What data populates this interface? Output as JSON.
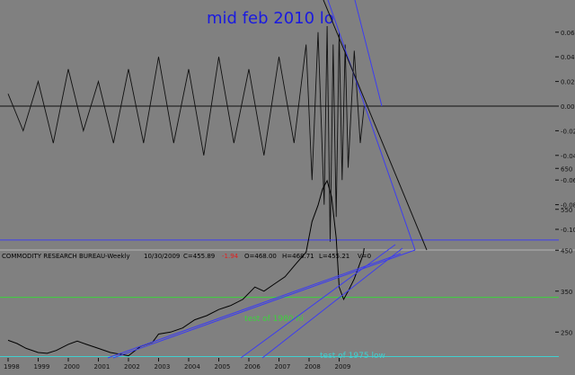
{
  "chart_data": [
    {
      "type": "line",
      "title": "mid feb 2010 lo",
      "ylabel": "",
      "xlabel": "",
      "ylim": [
        -0.12,
        0.07
      ],
      "y_ticks": [
        "0.06",
        "0.04",
        "0.02",
        "0.00",
        "-0.02",
        "-0.04",
        "-0.06",
        "-0.08",
        "-0.10"
      ],
      "zero_line": 0.0,
      "series": [
        {
          "x": [
            1998.0,
            1998.5,
            1999.0,
            1999.5,
            2000.0,
            2000.5,
            2001.0,
            2001.5,
            2002.0,
            2002.5,
            2003.0,
            2003.5,
            2004.0,
            2004.5,
            2005.0,
            2005.5,
            2006.0,
            2006.5,
            2007.0,
            2007.5,
            2007.9,
            2008.1,
            2008.3,
            2008.5,
            2008.6,
            2008.7,
            2008.8,
            2008.9,
            2009.0,
            2009.1,
            2009.2,
            2009.3,
            2009.5,
            2009.7,
            2009.83
          ],
          "y": [
            0.01,
            -0.02,
            0.02,
            -0.03,
            0.03,
            -0.02,
            0.02,
            -0.03,
            0.03,
            -0.03,
            0.04,
            -0.03,
            0.03,
            -0.04,
            0.04,
            -0.03,
            0.03,
            -0.04,
            0.04,
            -0.03,
            0.05,
            -0.06,
            0.06,
            -0.08,
            0.065,
            -0.11,
            0.05,
            -0.09,
            0.06,
            -0.06,
            0.05,
            -0.05,
            0.045,
            -0.03,
            0.0
          ]
        }
      ],
      "color": "#101010"
    },
    {
      "type": "line",
      "title": "COMMODITY RESEARCH BUREAU-Weekly",
      "header": {
        "date": "10/30/2009",
        "close": "C=455.89",
        "change": "-1.94",
        "open": "O=468.00",
        "high": "H=468.71",
        "low": "L=455.21",
        "volume": "V=0"
      },
      "xlabel": "",
      "ylabel": "",
      "x_ticks": [
        "1998",
        "1999",
        "2000",
        "2001",
        "2002",
        "2003",
        "2004",
        "2005",
        "2006",
        "2007",
        "2008",
        "2009"
      ],
      "y_ticks": [
        "650",
        "550",
        "450",
        "350",
        "250"
      ],
      "ylim": [
        190,
        680
      ],
      "series": [
        {
          "x": [
            1998.0,
            1998.3,
            1998.6,
            1999.0,
            1999.3,
            1999.6,
            2000.0,
            2000.3,
            2000.6,
            2001.0,
            2001.4,
            2001.8,
            2002.0,
            2002.4,
            2002.8,
            2003.0,
            2003.4,
            2003.8,
            2004.2,
            2004.6,
            2005.0,
            2005.4,
            2005.8,
            2006.2,
            2006.5,
            2006.8,
            2007.2,
            2007.6,
            2007.9,
            2008.1,
            2008.3,
            2008.45,
            2008.6,
            2008.75,
            2008.9,
            2009.0,
            2009.15,
            2009.3,
            2009.5,
            2009.65,
            2009.8,
            2009.83
          ],
          "y": [
            230,
            222,
            210,
            200,
            198,
            205,
            220,
            228,
            220,
            210,
            200,
            195,
            192,
            215,
            225,
            245,
            250,
            260,
            280,
            290,
            305,
            315,
            330,
            360,
            350,
            365,
            385,
            420,
            445,
            520,
            560,
            600,
            620,
            580,
            480,
            360,
            330,
            350,
            380,
            410,
            440,
            455
          ]
        }
      ],
      "color": "#000000",
      "reference_lines": [
        {
          "label": "",
          "value": 475,
          "color": "#3c3cf0"
        },
        {
          "label": "test of 1980 hi",
          "value": 335,
          "color": "#3cd23c"
        },
        {
          "label": "test of 1975 low",
          "value": 190,
          "color": "#40d0d0"
        }
      ]
    }
  ]
}
